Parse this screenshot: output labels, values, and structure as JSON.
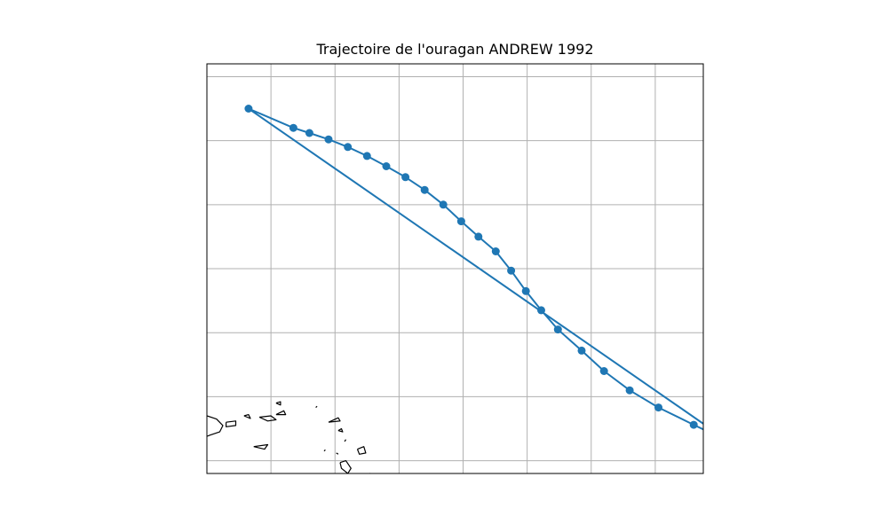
{
  "title": "Trajectoire de l'ouragan ANDREW 1992",
  "colors": {
    "track": "#1f77b4",
    "grid": "#b0b0b0",
    "coast": "#000000",
    "frame": "#000000"
  },
  "map": {
    "lon_range": [
      -67,
      -59.25
    ],
    "lat_range": [
      15.8,
      22.2
    ],
    "grid_step_deg": 1,
    "gridlines": true
  },
  "track": [
    {
      "lon": -58.85,
      "lat": 16.3
    },
    {
      "lon": -59.4,
      "lat": 16.56
    },
    {
      "lon": -59.95,
      "lat": 16.83
    },
    {
      "lon": -60.4,
      "lat": 17.1
    },
    {
      "lon": -60.8,
      "lat": 17.4
    },
    {
      "lon": -61.15,
      "lat": 17.72
    },
    {
      "lon": -61.52,
      "lat": 18.05
    },
    {
      "lon": -61.78,
      "lat": 18.35
    },
    {
      "lon": -62.02,
      "lat": 18.65
    },
    {
      "lon": -62.25,
      "lat": 18.97
    },
    {
      "lon": -62.49,
      "lat": 19.27
    },
    {
      "lon": -62.76,
      "lat": 19.5
    },
    {
      "lon": -63.03,
      "lat": 19.74
    },
    {
      "lon": -63.31,
      "lat": 20.0
    },
    {
      "lon": -63.6,
      "lat": 20.23
    },
    {
      "lon": -63.9,
      "lat": 20.43
    },
    {
      "lon": -64.2,
      "lat": 20.6
    },
    {
      "lon": -64.5,
      "lat": 20.76
    },
    {
      "lon": -64.8,
      "lat": 20.9
    },
    {
      "lon": -65.1,
      "lat": 21.02
    },
    {
      "lon": -65.4,
      "lat": 21.12
    },
    {
      "lon": -65.65,
      "lat": 21.2
    },
    {
      "lon": -66.35,
      "lat": 21.5
    },
    {
      "lon": -58.85,
      "lat": 16.3
    }
  ],
  "coastlines": [
    [
      [
        -67,
        16.7
      ],
      [
        -66.85,
        16.65
      ],
      [
        -66.75,
        16.55
      ],
      [
        -66.8,
        16.45
      ],
      [
        -66.95,
        16.4
      ],
      [
        -67,
        16.38
      ]
    ],
    [
      [
        -66.7,
        16.6
      ],
      [
        -66.55,
        16.62
      ],
      [
        -66.55,
        16.55
      ],
      [
        -66.7,
        16.53
      ],
      [
        -66.7,
        16.6
      ]
    ],
    [
      [
        -66.42,
        16.7
      ],
      [
        -66.35,
        16.72
      ],
      [
        -66.32,
        16.66
      ],
      [
        -66.42,
        16.7
      ]
    ],
    [
      [
        -66.18,
        16.68
      ],
      [
        -66.0,
        16.7
      ],
      [
        -65.92,
        16.64
      ],
      [
        -66.05,
        16.62
      ],
      [
        -66.18,
        16.68
      ]
    ],
    [
      [
        -65.92,
        16.72
      ],
      [
        -65.8,
        16.78
      ],
      [
        -65.77,
        16.72
      ],
      [
        -65.92,
        16.72
      ]
    ],
    [
      [
        -65.92,
        16.9
      ],
      [
        -65.85,
        16.92
      ],
      [
        -65.85,
        16.87
      ],
      [
        -65.92,
        16.9
      ]
    ],
    [
      [
        -66.27,
        16.22
      ],
      [
        -66.05,
        16.25
      ],
      [
        -66.1,
        16.18
      ],
      [
        -66.27,
        16.22
      ]
    ],
    [
      [
        -65.3,
        16.83
      ],
      [
        -65.28,
        16.85
      ]
    ],
    [
      [
        -65.1,
        16.6
      ],
      [
        -64.95,
        16.67
      ],
      [
        -64.92,
        16.62
      ],
      [
        -65.1,
        16.6
      ]
    ],
    [
      [
        -64.95,
        16.47
      ],
      [
        -64.9,
        16.5
      ],
      [
        -64.88,
        16.45
      ],
      [
        -64.95,
        16.47
      ]
    ],
    [
      [
        -64.85,
        16.3
      ],
      [
        -64.83,
        16.33
      ]
    ],
    [
      [
        -65.17,
        16.15
      ],
      [
        -65.15,
        16.17
      ]
    ],
    [
      [
        -64.98,
        16.12
      ],
      [
        -64.95,
        16.1
      ]
    ],
    [
      [
        -64.65,
        16.18
      ],
      [
        -64.55,
        16.22
      ],
      [
        -64.52,
        16.12
      ],
      [
        -64.62,
        16.1
      ],
      [
        -64.65,
        16.18
      ]
    ],
    [
      [
        -64.92,
        15.97
      ],
      [
        -64.83,
        16.0
      ],
      [
        -64.75,
        15.88
      ],
      [
        -64.8,
        15.8
      ],
      [
        -64.9,
        15.88
      ],
      [
        -64.92,
        15.97
      ]
    ],
    [
      [
        -64.6,
        15.77
      ],
      [
        -64.45,
        15.8
      ],
      [
        -64.45,
        15.7
      ],
      [
        -64.6,
        15.72
      ],
      [
        -64.6,
        15.77
      ]
    ],
    [
      [
        -64.8,
        15.6
      ],
      [
        -64.75,
        15.62
      ]
    ],
    [
      [
        -64.35,
        15.5
      ],
      [
        -64.28,
        15.55
      ],
      [
        -64.25,
        15.45
      ],
      [
        -64.35,
        15.5
      ]
    ],
    [
      [
        -64.17,
        15.2
      ],
      [
        -64.05,
        15.25
      ],
      [
        -63.95,
        15.22
      ],
      [
        -63.95,
        15.1
      ],
      [
        -64.15,
        15.05
      ],
      [
        -64.17,
        15.2
      ]
    ],
    [
      [
        -63.85,
        15.2
      ],
      [
        -63.7,
        15.27
      ]
    ]
  ]
}
